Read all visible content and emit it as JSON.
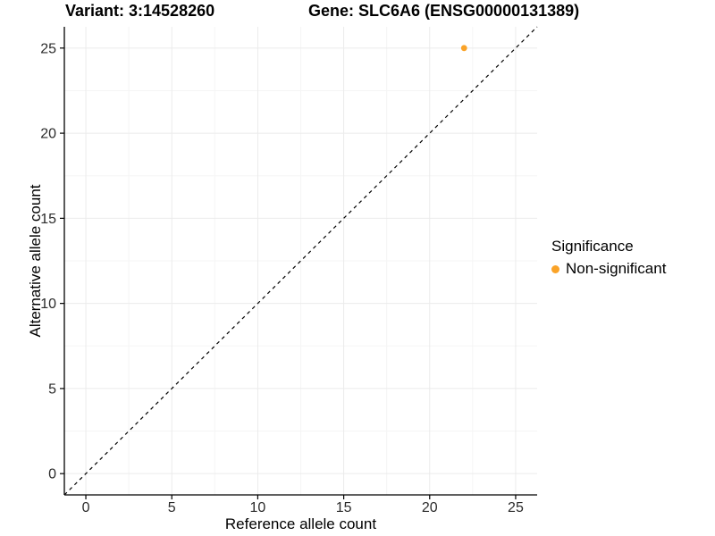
{
  "figure": {
    "background": "#ffffff"
  },
  "chart_data": {
    "type": "scatter",
    "titles": {
      "left": "Variant: 3:14528260",
      "right": "Gene: SLC6A6 (ENSG00000131389)"
    },
    "xlabel": "Reference allele count",
    "ylabel": "Alternative allele count",
    "xlim": [
      -1.25,
      26.25
    ],
    "ylim": [
      -1.25,
      26.25
    ],
    "x_ticks": [
      0,
      5,
      10,
      15,
      20,
      25
    ],
    "y_ticks": [
      0,
      5,
      10,
      15,
      20,
      25
    ],
    "x_minor_ticks": [
      2.5,
      7.5,
      12.5,
      17.5,
      22.5
    ],
    "y_minor_ticks": [
      2.5,
      7.5,
      12.5,
      17.5,
      22.5
    ],
    "grid": "major+minor",
    "identity_line": {
      "style": "dashed",
      "color": "#000000",
      "from": [
        -1.25,
        -1.25
      ],
      "to": [
        26.25,
        26.25
      ]
    },
    "series": [
      {
        "name": "Non-significant",
        "color": "#FAA328",
        "points": [
          {
            "x": 22,
            "y": 25
          }
        ]
      }
    ],
    "legend": {
      "title": "Significance",
      "position": "right",
      "items": [
        {
          "label": "Non-significant",
          "color": "#FAA328",
          "marker": "dot"
        }
      ]
    },
    "colors": {
      "grid_major": "#EBEBEB",
      "grid_minor": "#F5F5F5",
      "axis_line": "#000000",
      "tick_label": "#2B2B2B",
      "text": "#000000"
    }
  }
}
